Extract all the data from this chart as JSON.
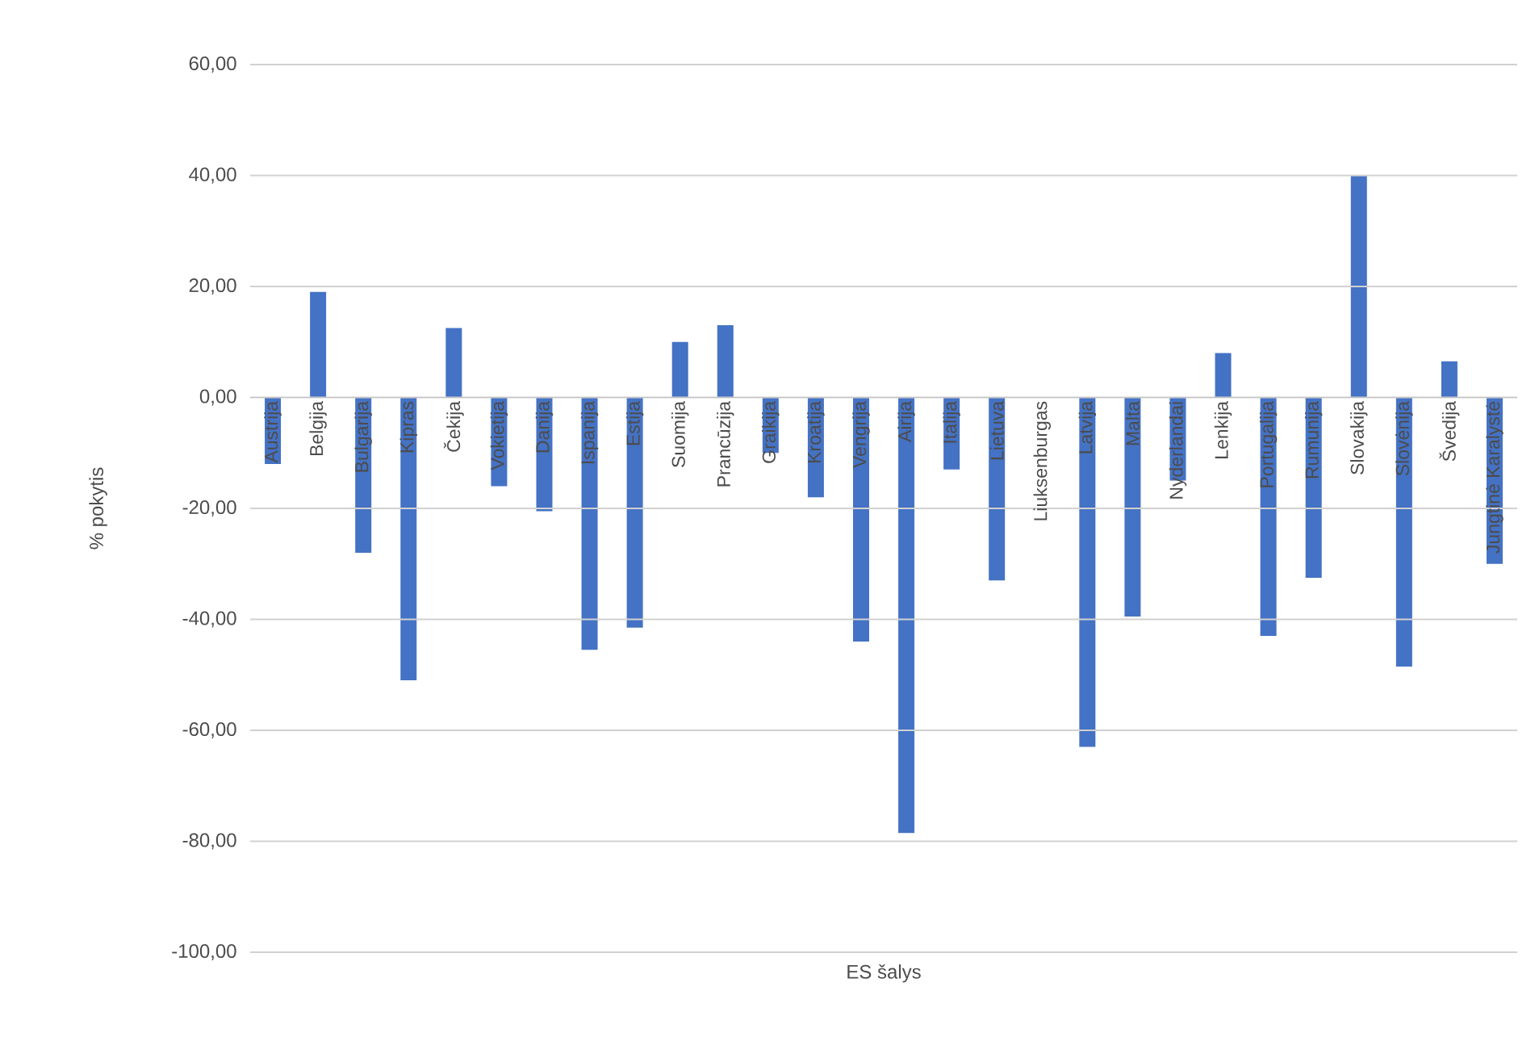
{
  "chart_data": {
    "type": "bar",
    "xlabel": "ES šalys",
    "ylabel": "% pokytis",
    "categories": [
      "Austrija",
      "Belgija",
      "Bulgarija",
      "Kipras",
      "Čekija",
      "Vokietija",
      "Danija",
      "Ispanija",
      "Estija",
      "Suomija",
      "Prancūzija",
      "Graikija",
      "Kroatija",
      "Vengrija",
      "Airija",
      "Italija",
      "Lietuva",
      "Liuksenburgas",
      "Latvija",
      "Malta",
      "Nyderlandai",
      "Lenkija",
      "Portugalija",
      "Rumunija",
      "Slovakija",
      "Slovėnija",
      "Švedija",
      "Jungtinė Karalystė"
    ],
    "values": [
      -12,
      19,
      -28,
      -51,
      12.5,
      -16,
      -20.5,
      -45.5,
      -41.5,
      10,
      13,
      -10,
      -18,
      -44,
      -78.5,
      -13,
      -33,
      0,
      -63,
      -39.5,
      -15,
      8,
      -43,
      -32.5,
      40,
      -48.5,
      6.5,
      -30
    ],
    "color": "#4472c4",
    "ylim": [
      -100,
      60
    ],
    "yticks": [
      {
        "value": -100,
        "label": "-100,00"
      },
      {
        "value": -80,
        "label": "-80,00"
      },
      {
        "value": -60,
        "label": "-60,00"
      },
      {
        "value": -40,
        "label": "-40,00"
      },
      {
        "value": -20,
        "label": "-20,00"
      },
      {
        "value": 0,
        "label": "0,00"
      },
      {
        "value": 20,
        "label": "20,00"
      },
      {
        "value": 40,
        "label": "40,00"
      },
      {
        "value": 60,
        "label": "60,00"
      }
    ],
    "grid": "y"
  }
}
